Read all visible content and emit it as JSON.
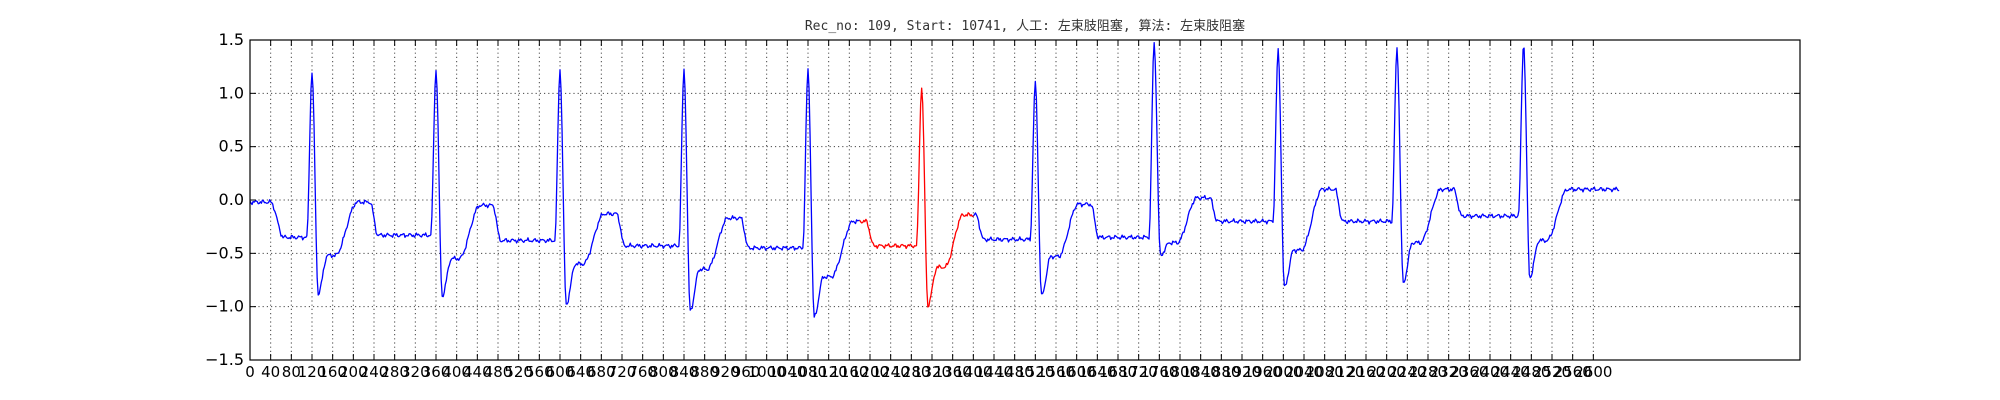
{
  "chart_data": {
    "type": "line",
    "title": "Rec_no: 109, Start: 10741, 人工: 左束肢阻塞, 算法: 左束肢阻塞",
    "xlabel": "",
    "ylabel": "",
    "xlim": [
      0,
      3000
    ],
    "ylim": [
      -1.5,
      1.5
    ],
    "grid": true,
    "yticks": [
      1.5,
      1.0,
      0.5,
      0.0,
      -0.5,
      -1.0,
      -1.5
    ],
    "ytick_labels": [
      "1.5",
      "1.0",
      "0.5",
      "0.0",
      "−0.5",
      "−1.0",
      "−1.5"
    ],
    "xticks": [
      0,
      40,
      80,
      120,
      160,
      200,
      240,
      280,
      320,
      360,
      400,
      440,
      480,
      520,
      560,
      600,
      640,
      680,
      720,
      760,
      800,
      840,
      880,
      920,
      960,
      1000,
      1040,
      1080,
      1120,
      1160,
      1200,
      1240,
      1280,
      1320,
      1360,
      1400,
      1440,
      1480,
      1520,
      1560,
      1600,
      1640,
      1680,
      1720,
      1760,
      1800,
      1840,
      1880,
      1920,
      1960,
      2000,
      2040,
      2080,
      2120,
      2160,
      2200,
      2240,
      2280,
      2320,
      2360,
      2400,
      2440,
      2480,
      2520,
      2560,
      2600
    ],
    "beats": [
      {
        "r": 120,
        "peak": 1.2,
        "pre": -0.35,
        "s": -0.88,
        "st": -0.52,
        "t": -0.02,
        "tw": 85
      },
      {
        "r": 360,
        "peak": 1.22,
        "pre": -0.33,
        "s": -0.9,
        "st": -0.55,
        "t": -0.05,
        "tw": 80
      },
      {
        "r": 600,
        "peak": 1.22,
        "pre": -0.38,
        "s": -0.98,
        "st": -0.6,
        "t": -0.13,
        "tw": 80
      },
      {
        "r": 840,
        "peak": 1.22,
        "pre": -0.43,
        "s": -1.04,
        "st": -0.65,
        "t": -0.17,
        "tw": 80
      },
      {
        "r": 1080,
        "peak": 1.22,
        "pre": -0.45,
        "s": -1.1,
        "st": -0.72,
        "t": -0.2,
        "tw": 85
      },
      {
        "r": 1300,
        "peak": 1.06,
        "pre": -0.43,
        "s": -0.99,
        "st": -0.63,
        "t": -0.14,
        "tw": 70
      },
      {
        "r": 1520,
        "peak": 1.1,
        "pre": -0.37,
        "s": -0.9,
        "st": -0.53,
        "t": -0.04,
        "tw": 75
      },
      {
        "r": 1750,
        "peak": 1.47,
        "pre": -0.35,
        "s": -0.52,
        "st": -0.4,
        "t": 0.02,
        "tw": 75
      },
      {
        "r": 1990,
        "peak": 1.4,
        "pre": -0.2,
        "s": -0.82,
        "st": -0.47,
        "t": 0.1,
        "tw": 80
      },
      {
        "r": 2220,
        "peak": 1.42,
        "pre": -0.2,
        "s": -0.78,
        "st": -0.4,
        "t": 0.1,
        "tw": 80
      },
      {
        "r": 2465,
        "peak": 1.47,
        "pre": -0.15,
        "s": -0.73,
        "st": -0.38,
        "t": 0.1,
        "tw": 80
      }
    ],
    "signal_end": 2650,
    "series": [
      {
        "color": "#0000ff",
        "segments": [
          [
            0,
            1180
          ],
          [
            1400,
            2650
          ]
        ]
      },
      {
        "color": "#ff0000",
        "segments": [
          [
            1180,
            1400
          ]
        ]
      }
    ]
  }
}
